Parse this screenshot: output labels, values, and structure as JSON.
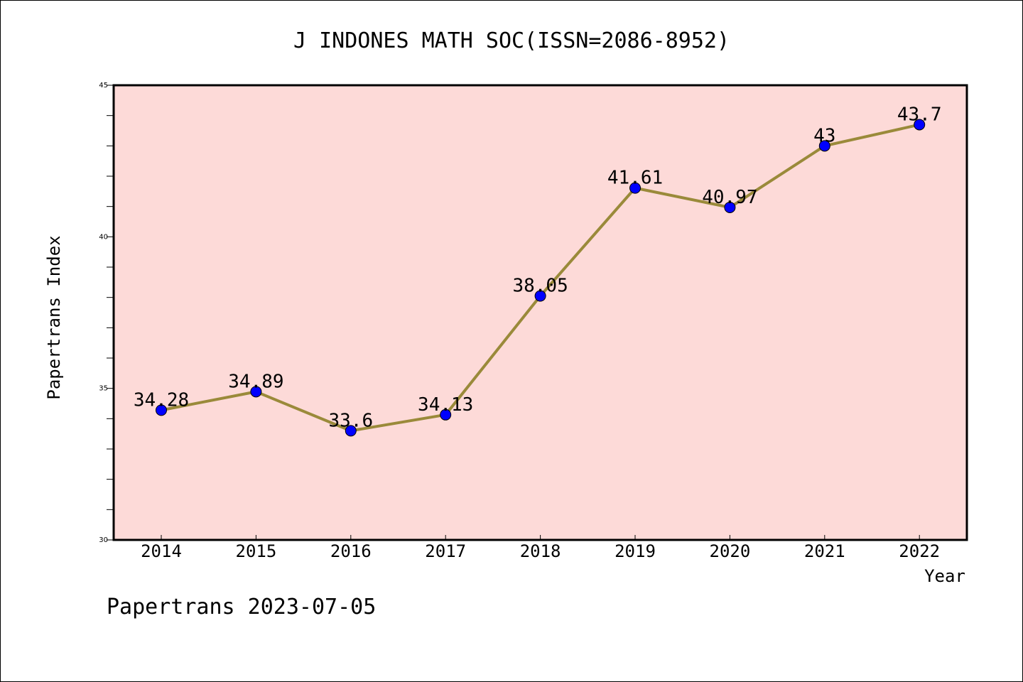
{
  "chart_data": {
    "type": "line",
    "title": "J INDONES MATH SOC(ISSN=2086-8952)",
    "xlabel": "Year",
    "ylabel": "Papertrans Index",
    "categories": [
      "2014",
      "2015",
      "2016",
      "2017",
      "2018",
      "2019",
      "2020",
      "2021",
      "2022"
    ],
    "values": [
      34.28,
      34.89,
      33.6,
      34.13,
      38.05,
      41.61,
      40.97,
      43,
      43.7
    ],
    "data_labels": [
      "34.28",
      "34.89",
      "33.6",
      "34.13",
      "38.05",
      "41.61",
      "40.97",
      "43",
      "43.7"
    ],
    "ylim": [
      30,
      45
    ],
    "yticks": [
      "30",
      "35",
      "40",
      "45"
    ],
    "grid": false,
    "colors": {
      "plot_background": "#fddad8",
      "line": "#9a8a3a",
      "marker": "#0000ff"
    }
  },
  "footer": "Papertrans 2023-07-05"
}
